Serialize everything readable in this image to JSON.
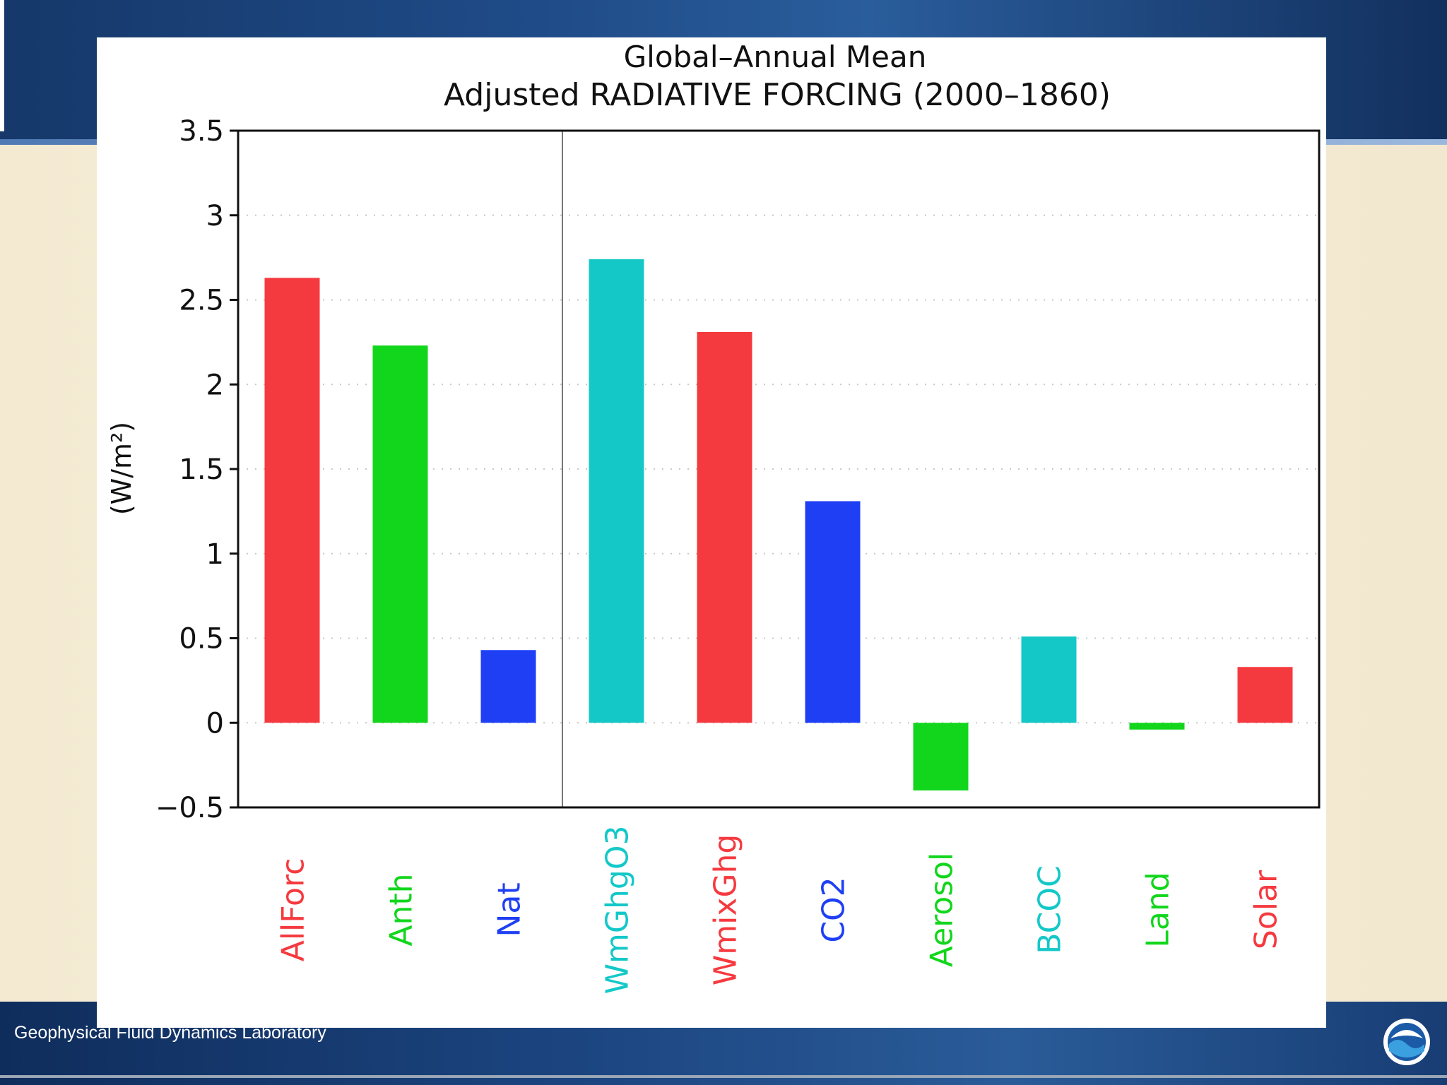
{
  "footer": {
    "org_name": "Geophysical Fluid Dynamics Laboratory",
    "logo_icon": "noaa-logo-icon"
  },
  "chart_data": {
    "type": "bar",
    "title": "Global–Annual Mean",
    "subtitle": "Adjusted RADIATIVE FORCING (2000–1860)",
    "ylabel": "(W/m²)",
    "xlabel": "",
    "ylim": [
      -0.5,
      3.5
    ],
    "yticks": [
      -0.5,
      0,
      0.5,
      1,
      1.5,
      2,
      2.5,
      3,
      3.5
    ],
    "ytick_labels": [
      "−0.5",
      "0",
      "0.5",
      "1",
      "1.5",
      "2",
      "2.5",
      "3",
      "3.5"
    ],
    "grid": true,
    "categories": [
      "AllForc",
      "Anth",
      "Nat",
      "WmGhgO3",
      "WmixGhg",
      "CO2",
      "Aerosol",
      "BCOC",
      "Land",
      "Solar"
    ],
    "values": [
      2.63,
      2.23,
      0.43,
      2.74,
      2.31,
      1.31,
      -0.4,
      0.51,
      -0.04,
      0.33
    ],
    "colors": [
      "#f53a3f",
      "#12d61c",
      "#1f3ff5",
      "#14c8c8",
      "#f53a3f",
      "#1f3ff5",
      "#12d61c",
      "#14c8c8",
      "#12d61c",
      "#f53a3f"
    ],
    "separator_after_index": 2
  }
}
